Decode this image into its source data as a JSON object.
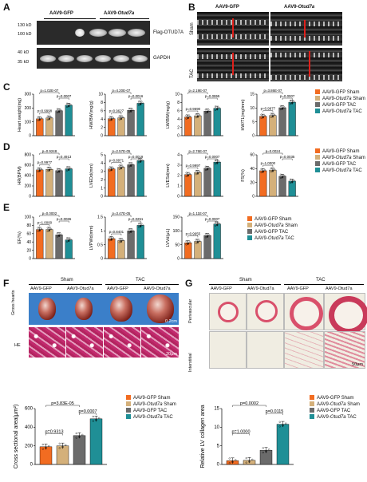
{
  "colors": {
    "sham_gfp": "#f26c21",
    "sham_otud7a": "#d4b07a",
    "tac_gfp": "#6b6b6b",
    "tac_otud7a": "#1f8f96"
  },
  "panels": {
    "A": "A",
    "B": "B",
    "C": "C",
    "D": "D",
    "E": "E",
    "F": "F",
    "G": "G"
  },
  "legend": {
    "gfp_sham": "AAV9-GFP Sham",
    "otud7a_sham_prefix": "AAV9-",
    "otud7a_sham_gene": "Otud7a",
    "otud7a_sham_suffix": " Sham",
    "gfp_tac": "AAV9-GFP TAC",
    "otud7a_tac_prefix": "AAV9-",
    "otud7a_tac_gene": "Otud7a",
    "otud7a_tac_suffix": " TAC"
  },
  "blot": {
    "col_gfp": "AAV9-GFP",
    "col_otud7a_prefix": "AAV9-",
    "col_otud7a_gene": "Otud7a",
    "mw1": "130 kD",
    "mw2": "100 kD",
    "mw3": "40 kD",
    "mw4": "35 kD",
    "row1": "Flag-OTUD7A",
    "row2": "GAPDH"
  },
  "echo": {
    "col_gfp": "AAV9-GFP",
    "col_otud7a_prefix": "AAV9-",
    "col_otud7a_gene": "Otud7a",
    "row_sham": "Sham",
    "row_tac": "TAC"
  },
  "gross": {
    "sham": "Sham",
    "tac": "TAC",
    "c1": "AAV9-GFP",
    "c2": "AAV9-Otud7a",
    "c3": "AAV9-GFP",
    "c4": "AAV9-Otud7a",
    "row1": "Gross hearts",
    "row2": "HE",
    "scale1": "0.2cm",
    "scale2": "20μm"
  },
  "histo": {
    "sham": "Sham",
    "tac": "TAC",
    "c1": "AAV9-GFP",
    "c2": "AAV9-Otud7a",
    "c3": "AAV9-GFP",
    "c4": "AAV9-Otud7a",
    "row1": "Perivascular",
    "row2": "Interstitial",
    "scale": "50μm"
  },
  "chart_data": [
    {
      "type": "bar",
      "id": "C1",
      "ylabel": "Heart weight(mg)",
      "ylim": [
        0,
        300
      ],
      "yticks": [
        0,
        100,
        200,
        300
      ],
      "values": [
        122,
        128,
        180,
        220
      ],
      "pvals": [
        {
          "a": 0,
          "b": 2,
          "t": "p=1.02E-07"
        },
        {
          "a": 2,
          "b": 3,
          "t": "p=0.0007"
        },
        {
          "a": 0,
          "b": 1,
          "t": "p=0.9998"
        }
      ]
    },
    {
      "type": "bar",
      "id": "C2",
      "ylabel": "HW/BW(mg/g)",
      "ylim": [
        0,
        10
      ],
      "yticks": [
        0,
        2,
        4,
        6,
        8,
        10
      ],
      "values": [
        4.1,
        4.3,
        6.1,
        7.8
      ],
      "pvals": [
        {
          "a": 0,
          "b": 2,
          "t": "p=4.20E-07"
        },
        {
          "a": 2,
          "b": 3,
          "t": "p=0.0016"
        },
        {
          "a": 0,
          "b": 1,
          "t": "p=0.9627"
        }
      ]
    },
    {
      "type": "bar",
      "id": "C3",
      "ylabel": "LW/BW(mg/g)",
      "ylim": [
        0,
        10
      ],
      "yticks": [
        0,
        2,
        4,
        6,
        8,
        10
      ],
      "values": [
        4.5,
        4.8,
        5.9,
        6.6
      ],
      "pvals": [
        {
          "a": 0,
          "b": 2,
          "t": "p=2.19E-07"
        },
        {
          "a": 2,
          "b": 3,
          "t": "p=0.0955"
        },
        {
          "a": 0,
          "b": 1,
          "t": "p=0.9690"
        }
      ]
    },
    {
      "type": "bar",
      "id": "C4",
      "ylabel": "HW/TL(mg/mm)",
      "ylim": [
        0,
        15
      ],
      "yticks": [
        0,
        5,
        10,
        15
      ],
      "values": [
        7.0,
        7.3,
        10.1,
        12.1
      ],
      "pvals": [
        {
          "a": 0,
          "b": 2,
          "t": "p=3.86E-07"
        },
        {
          "a": 2,
          "b": 3,
          "t": "p=0.0007"
        },
        {
          "a": 0,
          "b": 1,
          "t": "p=0.9977"
        }
      ]
    },
    {
      "type": "bar",
      "id": "D1",
      "ylabel": "HR(BPM)",
      "ylim": [
        0,
        800
      ],
      "yticks": [
        0,
        200,
        400,
        600,
        800
      ],
      "values": [
        510,
        520,
        495,
        530
      ],
      "pvals": [
        {
          "a": 0,
          "b": 2,
          "t": "p=0.9248"
        },
        {
          "a": 2,
          "b": 3,
          "t": "p=0.4913"
        },
        {
          "a": 0,
          "b": 1,
          "t": "p=0.9977"
        }
      ]
    },
    {
      "type": "bar",
      "id": "D2",
      "ylabel": "LVEDd(mm)",
      "ylim": [
        0,
        5
      ],
      "yticks": [
        0,
        1,
        2,
        3,
        4,
        5
      ],
      "values": [
        3.3,
        3.5,
        3.8,
        4.3
      ],
      "pvals": [
        {
          "a": 0,
          "b": 2,
          "t": "p=2.57E-05"
        },
        {
          "a": 2,
          "b": 3,
          "t": "p=0.0019"
        },
        {
          "a": 0,
          "b": 1,
          "t": "p=0.8971"
        }
      ]
    },
    {
      "type": "bar",
      "id": "D3",
      "ylabel": "LVESd(mm)",
      "ylim": [
        0,
        4
      ],
      "yticks": [
        0,
        1,
        2,
        3,
        4
      ],
      "values": [
        2.1,
        2.3,
        2.7,
        3.3
      ],
      "pvals": [
        {
          "a": 0,
          "b": 2,
          "t": "p=2.76E-07"
        },
        {
          "a": 2,
          "b": 3,
          "t": "p=0.0007"
        },
        {
          "a": 0,
          "b": 1,
          "t": "p=0.9997"
        }
      ]
    },
    {
      "type": "bar",
      "id": "D4",
      "ylabel": "FS(%)",
      "ylim": [
        0,
        60
      ],
      "yticks": [
        0,
        20,
        40,
        60
      ],
      "values": [
        37,
        38,
        29,
        22
      ],
      "pvals": [
        {
          "a": 0,
          "b": 2,
          "t": "p=0.0024"
        },
        {
          "a": 2,
          "b": 3,
          "t": "p=0.0035"
        },
        {
          "a": 0,
          "b": 1,
          "t": "p=1.0000"
        }
      ]
    },
    {
      "type": "bar",
      "id": "E1",
      "ylabel": "EF(%)",
      "ylim": [
        0,
        100
      ],
      "yticks": [
        0,
        20,
        40,
        60,
        80,
        100
      ],
      "values": [
        70,
        70,
        57,
        45
      ],
      "pvals": [
        {
          "a": 0,
          "b": 2,
          "t": "p=0.0002"
        },
        {
          "a": 2,
          "b": 3,
          "t": "p=0.0065"
        },
        {
          "a": 0,
          "b": 1,
          "t": "p=1.0000"
        }
      ]
    },
    {
      "type": "bar",
      "id": "E2",
      "ylabel": "LVPWd(mm)",
      "ylim": [
        0,
        1.5
      ],
      "yticks": [
        0,
        0.5,
        1.0,
        1.5
      ],
      "values": [
        0.72,
        0.65,
        1.0,
        1.2
      ],
      "pvals": [
        {
          "a": 0,
          "b": 2,
          "t": "p=3.47E-05"
        },
        {
          "a": 2,
          "b": 3,
          "t": "p=0.0251"
        },
        {
          "a": 0,
          "b": 1,
          "t": "p=0.8401"
        }
      ]
    },
    {
      "type": "bar",
      "id": "E3",
      "ylabel": "LVVd(μL)",
      "ylim": [
        0,
        150
      ],
      "yticks": [
        0,
        50,
        100,
        150
      ],
      "values": [
        57,
        62,
        83,
        125
      ],
      "pvals": [
        {
          "a": 0,
          "b": 2,
          "t": "p=1.11E-07"
        },
        {
          "a": 2,
          "b": 3,
          "t": "p=0.0007"
        },
        {
          "a": 0,
          "b": 1,
          "t": "p=0.9655"
        }
      ]
    },
    {
      "type": "bar",
      "id": "F",
      "ylabel": "Cross sectional area(μm²)",
      "ylim": [
        0,
        600
      ],
      "yticks": [
        0,
        200,
        400,
        600
      ],
      "values": [
        190,
        200,
        310,
        490
      ],
      "pvals": [
        {
          "a": 0,
          "b": 2,
          "t": "p=3.83E-05"
        },
        {
          "a": 2,
          "b": 3,
          "t": "p=0.0007"
        },
        {
          "a": 0,
          "b": 1,
          "t": "p=0.9313"
        }
      ]
    },
    {
      "type": "bar",
      "id": "G",
      "ylabel": "Relative LV collagen area",
      "ylim": [
        0,
        15
      ],
      "yticks": [
        0,
        5,
        10,
        15
      ],
      "values": [
        1.0,
        1.1,
        3.8,
        10.8
      ],
      "pvals": [
        {
          "a": 0,
          "b": 2,
          "t": "p=0.0002"
        },
        {
          "a": 2,
          "b": 3,
          "t": "p=0.0115"
        },
        {
          "a": 0,
          "b": 1,
          "t": "p=1.0000"
        }
      ]
    }
  ]
}
